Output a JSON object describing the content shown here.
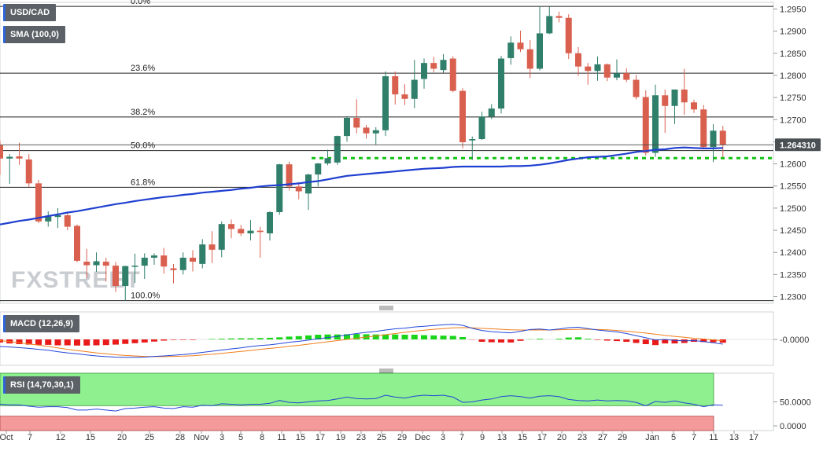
{
  "colors": {
    "up": "#2f7f6b",
    "down": "#d9604f",
    "sma": "#1f3fd0",
    "support": "#12c312",
    "macd_line": "#2346d8",
    "signal_line": "#f07d1a",
    "hist_pos": "#19d419",
    "hist_neg": "#e81a1a",
    "rsi_line": "#2346d8",
    "rsi_ob": "#8ef08e",
    "rsi_os": "#f49a9a"
  },
  "chart_data": [
    {
      "type": "candlestick",
      "instrument": "USD/CAD",
      "indicator_label": "SMA (100,0)",
      "price_badge": "1.264310",
      "price_badge_value": 1.26431,
      "ylim": [
        1.2285,
        1.2965
      ],
      "y_ticks": [
        "1.2300",
        "1.2350",
        "1.2400",
        "1.2450",
        "1.2500",
        "1.2550",
        "1.2600",
        "1.2650",
        "1.2700",
        "1.2750",
        "1.2800",
        "1.2850",
        "1.2900",
        "1.2950"
      ],
      "x_ticks": [
        "Oct",
        "7",
        "12",
        "15",
        "20",
        "25",
        "28",
        "Nov",
        "3",
        "5",
        "8",
        "11",
        "15",
        "17",
        "19",
        "23",
        "25",
        "29",
        "Dec",
        "3",
        "7",
        "9",
        "13",
        "15",
        "17",
        "20",
        "23",
        "27",
        "29",
        "Jan",
        "5",
        "7",
        "11",
        "13",
        "17"
      ],
      "fib_levels": [
        {
          "label": "0.0%",
          "value": 1.2956
        },
        {
          "label": "23.6%",
          "value": 1.2805
        },
        {
          "label": "38.2%",
          "value": 1.2706
        },
        {
          "label": "50.0%",
          "value": 1.263
        },
        {
          "label": "61.8%",
          "value": 1.2547
        },
        {
          "label": "100.0%",
          "value": 1.2291
        }
      ],
      "support_level": 1.2613,
      "candles": [
        [
          1.2642,
          1.2652,
          1.2575,
          1.2612
        ],
        [
          1.2612,
          1.2622,
          1.2555,
          1.2616
        ],
        [
          1.2617,
          1.2648,
          1.2598,
          1.2612
        ],
        [
          1.261,
          1.2622,
          1.2548,
          1.2556
        ],
        [
          1.2556,
          1.2564,
          1.2466,
          1.247
        ],
        [
          1.247,
          1.2493,
          1.2458,
          1.2481
        ],
        [
          1.248,
          1.25,
          1.2455,
          1.2484
        ],
        [
          1.2484,
          1.2492,
          1.245,
          1.2458
        ],
        [
          1.246,
          1.2463,
          1.2378,
          1.2381
        ],
        [
          1.2379,
          1.2408,
          1.2342,
          1.2371
        ],
        [
          1.2371,
          1.24,
          1.2356,
          1.238
        ],
        [
          1.2379,
          1.2388,
          1.2334,
          1.237
        ],
        [
          1.237,
          1.2378,
          1.231,
          1.2324
        ],
        [
          1.2324,
          1.237,
          1.229,
          1.2369
        ],
        [
          1.2369,
          1.2397,
          1.2331,
          1.237
        ],
        [
          1.237,
          1.2398,
          1.234,
          1.2388
        ],
        [
          1.2388,
          1.2398,
          1.2372,
          1.2393
        ],
        [
          1.2393,
          1.241,
          1.2352,
          1.2368
        ],
        [
          1.2364,
          1.2374,
          1.233,
          1.236
        ],
        [
          1.236,
          1.24,
          1.235,
          1.2388
        ],
        [
          1.2388,
          1.2405,
          1.2357,
          1.2379
        ],
        [
          1.2374,
          1.243,
          1.2364,
          1.2418
        ],
        [
          1.2418,
          1.2448,
          1.2376,
          1.2406
        ],
        [
          1.2406,
          1.247,
          1.2389,
          1.2464
        ],
        [
          1.2464,
          1.2474,
          1.2432,
          1.2453
        ],
        [
          1.2453,
          1.2462,
          1.2437,
          1.2443
        ],
        [
          1.2443,
          1.2473,
          1.2427,
          1.2449
        ],
        [
          1.2449,
          1.2458,
          1.2388,
          1.2446
        ],
        [
          1.2443,
          1.2493,
          1.2427,
          1.2491
        ],
        [
          1.2491,
          1.26,
          1.2485,
          1.2599
        ],
        [
          1.2599,
          1.2605,
          1.254,
          1.2549
        ],
        [
          1.2549,
          1.2559,
          1.252,
          1.2538
        ],
        [
          1.2533,
          1.2578,
          1.2496,
          1.2576
        ],
        [
          1.2576,
          1.2602,
          1.2549,
          1.2601
        ],
        [
          1.2601,
          1.2632,
          1.2597,
          1.2613
        ],
        [
          1.2603,
          1.2664,
          1.2598,
          1.2663
        ],
        [
          1.2663,
          1.2708,
          1.265,
          1.2704
        ],
        [
          1.2704,
          1.2746,
          1.2669,
          1.2682
        ],
        [
          1.2682,
          1.2688,
          1.2657,
          1.2669
        ],
        [
          1.2669,
          1.2683,
          1.2644,
          1.2676
        ],
        [
          1.2676,
          1.2809,
          1.2663,
          1.2798
        ],
        [
          1.2798,
          1.2809,
          1.2734,
          1.2757
        ],
        [
          1.2757,
          1.278,
          1.2733,
          1.2747
        ],
        [
          1.2747,
          1.2835,
          1.2726,
          1.279
        ],
        [
          1.2792,
          1.2838,
          1.277,
          1.2828
        ],
        [
          1.2828,
          1.2842,
          1.2807,
          1.2815
        ],
        [
          1.2812,
          1.2848,
          1.2806,
          1.2835
        ],
        [
          1.2838,
          1.2843,
          1.2762,
          1.2765
        ],
        [
          1.2765,
          1.2771,
          1.2635,
          1.2649
        ],
        [
          1.2653,
          1.2662,
          1.2609,
          1.2656
        ],
        [
          1.2656,
          1.2718,
          1.2654,
          1.2707
        ],
        [
          1.2707,
          1.2735,
          1.2701,
          1.2725
        ],
        [
          1.2725,
          1.2844,
          1.2714,
          1.2838
        ],
        [
          1.2839,
          1.2888,
          1.2824,
          1.2874
        ],
        [
          1.2874,
          1.2901,
          1.2853,
          1.2859
        ],
        [
          1.2859,
          1.288,
          1.2794,
          1.2815
        ],
        [
          1.2815,
          1.2956,
          1.2811,
          1.2895
        ],
        [
          1.2895,
          1.2955,
          1.2893,
          1.2934
        ],
        [
          1.2934,
          1.2944,
          1.292,
          1.293
        ],
        [
          1.293,
          1.2938,
          1.2837,
          1.285
        ],
        [
          1.285,
          1.2864,
          1.2799,
          1.282
        ],
        [
          1.282,
          1.2828,
          1.2779,
          1.281
        ],
        [
          1.281,
          1.2843,
          1.2788,
          1.2825
        ],
        [
          1.2825,
          1.2827,
          1.2787,
          1.2795
        ],
        [
          1.2795,
          1.2836,
          1.2789,
          1.2805
        ],
        [
          1.2805,
          1.2816,
          1.2785,
          1.279
        ],
        [
          1.279,
          1.2801,
          1.2746,
          1.2751
        ],
        [
          1.2751,
          1.2766,
          1.2619,
          1.2625
        ],
        [
          1.2625,
          1.2779,
          1.2616,
          1.2755
        ],
        [
          1.2755,
          1.2768,
          1.267,
          1.2731
        ],
        [
          1.2731,
          1.2768,
          1.269,
          1.2768
        ],
        [
          1.2768,
          1.2815,
          1.2711,
          1.2739
        ],
        [
          1.2739,
          1.2745,
          1.2715,
          1.2723
        ],
        [
          1.2723,
          1.2733,
          1.2633,
          1.2638
        ],
        [
          1.2638,
          1.269,
          1.2604,
          1.2675
        ],
        [
          1.2675,
          1.2686,
          1.2615,
          1.2643
        ]
      ],
      "sma_100": [
        1.2463,
        1.2467,
        1.2471,
        1.2474,
        1.2478,
        1.2482,
        1.2486,
        1.249,
        1.2493,
        1.2497,
        1.2501,
        1.2505,
        1.2509,
        1.2512,
        1.2516,
        1.2519,
        1.2522,
        1.2525,
        1.2527,
        1.253,
        1.2532,
        1.2535,
        1.2537,
        1.2539,
        1.2541,
        1.2544,
        1.2546,
        1.2549,
        1.2551,
        1.2552,
        1.2554,
        1.2556,
        1.2559,
        1.2561,
        1.2565,
        1.2569,
        1.2573,
        1.2575,
        1.2577,
        1.2579,
        1.2581,
        1.2583,
        1.2585,
        1.2587,
        1.2589,
        1.259,
        1.2591,
        1.2593,
        1.2594,
        1.2594,
        1.2594,
        1.2594,
        1.2594,
        1.2595,
        1.2595,
        1.2596,
        1.2598,
        1.2601,
        1.2605,
        1.2609,
        1.2612,
        1.2615,
        1.2616,
        1.2617,
        1.262,
        1.2623,
        1.2627,
        1.2629,
        1.2632,
        1.2633,
        1.2636,
        1.2637,
        1.2636,
        1.2635,
        1.2635,
        1.2636
      ]
    },
    {
      "type": "line",
      "indicator_label": "MACD (12,26,9)",
      "y_tick_label": "-0.0000",
      "ylim": [
        -1,
        1
      ],
      "macd": [
        -0.3,
        -0.32,
        -0.35,
        -0.38,
        -0.42,
        -0.46,
        -0.52,
        -0.57,
        -0.61,
        -0.66,
        -0.7,
        -0.73,
        -0.75,
        -0.76,
        -0.76,
        -0.75,
        -0.72,
        -0.7,
        -0.67,
        -0.64,
        -0.6,
        -0.55,
        -0.5,
        -0.45,
        -0.4,
        -0.36,
        -0.3,
        -0.26,
        -0.23,
        -0.18,
        -0.12,
        -0.08,
        -0.03,
        0.03,
        0.08,
        0.13,
        0.19,
        0.25,
        0.3,
        0.34,
        0.4,
        0.45,
        0.48,
        0.53,
        0.56,
        0.59,
        0.62,
        0.64,
        0.6,
        0.47,
        0.38,
        0.33,
        0.3,
        0.28,
        0.34,
        0.42,
        0.44,
        0.4,
        0.44,
        0.5,
        0.52,
        0.46,
        0.4,
        0.36,
        0.32,
        0.25,
        0.16,
        0.07,
        -0.02,
        0.0,
        -0.04,
        -0.06,
        -0.05,
        -0.09,
        -0.14,
        -0.2
      ],
      "signal": [
        -0.05,
        -0.09,
        -0.14,
        -0.19,
        -0.24,
        -0.3,
        -0.36,
        -0.42,
        -0.47,
        -0.52,
        -0.57,
        -0.61,
        -0.65,
        -0.68,
        -0.7,
        -0.72,
        -0.73,
        -0.73,
        -0.72,
        -0.71,
        -0.69,
        -0.66,
        -0.63,
        -0.59,
        -0.55,
        -0.51,
        -0.47,
        -0.42,
        -0.38,
        -0.34,
        -0.29,
        -0.25,
        -0.2,
        -0.15,
        -0.1,
        -0.05,
        0.0,
        0.05,
        0.1,
        0.15,
        0.2,
        0.25,
        0.3,
        0.35,
        0.39,
        0.43,
        0.46,
        0.49,
        0.5,
        0.49,
        0.47,
        0.45,
        0.43,
        0.41,
        0.4,
        0.4,
        0.4,
        0.4,
        0.41,
        0.42,
        0.43,
        0.43,
        0.42,
        0.41,
        0.38,
        0.35,
        0.31,
        0.27,
        0.22,
        0.17,
        0.13,
        0.09,
        0.05,
        0.02,
        -0.02,
        -0.06
      ],
      "histogram": [
        -0.13,
        -0.17,
        -0.2,
        -0.22,
        -0.23,
        -0.23,
        -0.25,
        -0.25,
        -0.26,
        -0.26,
        -0.25,
        -0.24,
        -0.22,
        -0.19,
        -0.16,
        -0.13,
        -0.09,
        -0.05,
        -0.02,
        -0.02,
        -0.02,
        0.0,
        0.02,
        0.03,
        0.04,
        0.05,
        0.05,
        0.06,
        0.07,
        0.09,
        0.12,
        0.14,
        0.17,
        0.2,
        0.21,
        0.21,
        0.22,
        0.23,
        0.22,
        0.21,
        0.21,
        0.21,
        0.2,
        0.2,
        0.18,
        0.17,
        0.16,
        0.15,
        0.1,
        -0.01,
        -0.1,
        -0.12,
        -0.13,
        -0.13,
        -0.06,
        0.01,
        0.03,
        0.0,
        0.03,
        0.08,
        0.09,
        0.03,
        -0.02,
        -0.05,
        -0.07,
        -0.1,
        -0.15,
        -0.2,
        -0.24,
        -0.17,
        -0.17,
        -0.15,
        -0.1,
        -0.11,
        -0.12,
        -0.14
      ]
    },
    {
      "type": "line",
      "indicator_label": "RSI (14,70,30,1)",
      "y_ticks": [
        "50.0000",
        "0.0000"
      ],
      "ylim": [
        0,
        100
      ],
      "overbought": 70,
      "oversold": 30,
      "rsi": [
        45,
        44,
        44,
        41,
        39,
        40,
        40,
        38,
        33,
        33,
        35,
        33,
        31,
        36,
        37,
        39,
        40,
        37,
        36,
        40,
        39,
        43,
        42,
        46,
        45,
        44,
        45,
        45,
        47,
        53,
        49,
        48,
        50,
        52,
        53,
        56,
        60,
        57,
        56,
        57,
        64,
        60,
        58,
        62,
        64,
        63,
        64,
        60,
        49,
        50,
        54,
        56,
        61,
        63,
        61,
        58,
        62,
        63,
        61,
        55,
        53,
        52,
        54,
        52,
        53,
        52,
        49,
        42,
        51,
        49,
        52,
        48,
        45,
        40,
        44,
        43
      ]
    }
  ]
}
